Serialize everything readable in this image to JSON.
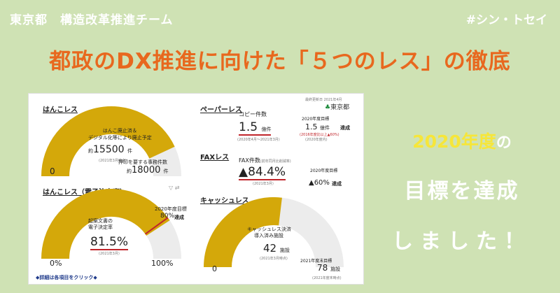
{
  "header": {
    "left": "東京都　構造改革推進チーム",
    "right": "#シン・トセイ"
  },
  "title": "都政のDX推進に向けた「５つのレス」の徹底",
  "dashboard": {
    "hanko": {
      "title": "はんこレス",
      "gauge_label": "はんこ廃止済＆\nデジタル化等により廃止予定",
      "value_prefix": "約",
      "value": "15500",
      "value_unit": "件",
      "note": "(2021年3月時点)",
      "total_label": "押印を要する事務件数",
      "total_prefix": "約",
      "total_value": "18000",
      "total_unit": "件",
      "zero": "0"
    },
    "hanko_e": {
      "title": "はんこレス（電子決定率）",
      "gauge_label1": "起案文書の",
      "gauge_label2": "電子決定率",
      "value": "81.5%",
      "note": "(2021年3月)",
      "target_label": "2020年度目標",
      "target_value": "80%",
      "achieved": "達成",
      "min": "0%",
      "max": "100%",
      "fraction": 0.815
    },
    "paper": {
      "title": "ペーパーレス",
      "label": "コピー件数",
      "value": "1.5",
      "unit": "億件",
      "note": "(2020年4月～2021年3月)",
      "target_label": "2020年度目標",
      "target_value": "1.5",
      "target_unit": "億件",
      "achieved": "達成",
      "target_note": "(2016年度比以上▲60%)",
      "target_note2": "(2020年度内)"
    },
    "fax": {
      "title": "FAXレス",
      "label": "FAX件数",
      "label_note": "(前年同月比削減率)",
      "value": "▲84.4%",
      "note": "(2021年3月)",
      "target_label": "2020年度目標",
      "target_value": "▲60%",
      "achieved": "達成"
    },
    "cashless": {
      "title": "キャッシュレス",
      "gauge_label1": "キャッシュレス決済",
      "gauge_label2": "導入済み施設",
      "value": "42",
      "unit": "施設",
      "note": "(2021年3月時点)",
      "target_label": "2021年度末目標",
      "target_value": "78",
      "target_unit": "施設",
      "target_note": "(2021年度末時点)",
      "zero": "0",
      "fraction": 0.538
    },
    "logo": "東京都",
    "date_note": "最終更新日 2021年4月",
    "footer": "◆詳細は各項目をクリック◆"
  },
  "right": {
    "line1_main": "2020年度",
    "line1_particle": "の",
    "line2": "目標を達成",
    "line3": "しました！"
  },
  "colors": {
    "background": "#cfe2b4",
    "title": "#e8681e",
    "gauge": "#d4a80a",
    "gauge_bg": "#ececec",
    "target": "#c0252b"
  }
}
